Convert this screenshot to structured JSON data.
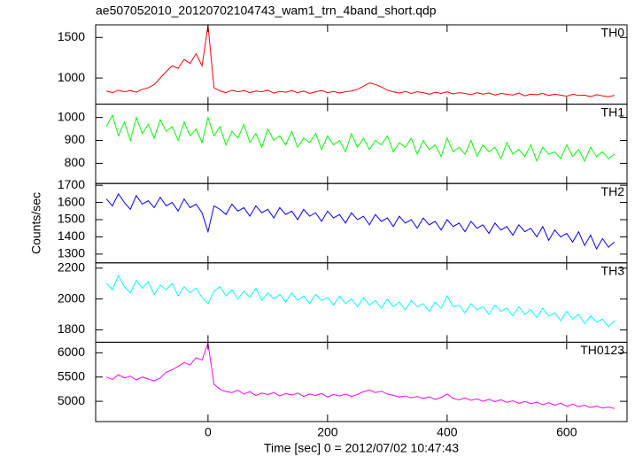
{
  "title": "ae507052010_20120702104743_wam1_trn_4band_short.qdp",
  "x_label": "Time [sec] 0 = 2012/07/02 10:47:43",
  "y_label": "Counts/sec",
  "chart_data": [
    {
      "type": "line",
      "x": [
        -170,
        -160,
        -150,
        -140,
        -130,
        -120,
        -110,
        -100,
        -90,
        -80,
        -70,
        -60,
        -50,
        -40,
        -30,
        -20,
        -10,
        0,
        10,
        20,
        30,
        40,
        50,
        60,
        70,
        80,
        90,
        100,
        110,
        120,
        130,
        140,
        150,
        160,
        170,
        180,
        190,
        200,
        210,
        220,
        230,
        240,
        250,
        260,
        270,
        280,
        290,
        300,
        310,
        320,
        330,
        340,
        350,
        360,
        370,
        380,
        390,
        400,
        410,
        420,
        430,
        440,
        450,
        460,
        470,
        480,
        490,
        500,
        510,
        520,
        530,
        540,
        550,
        560,
        570,
        580,
        590,
        600,
        610,
        620,
        630,
        640,
        650,
        660,
        670,
        680
      ],
      "series": [
        {
          "name": "TH0",
          "color": "#ff0000",
          "values": [
            840,
            820,
            850,
            830,
            845,
            825,
            860,
            880,
            920,
            1000,
            1080,
            1150,
            1120,
            1230,
            1180,
            1300,
            1150,
            1650,
            880,
            840,
            820,
            850,
            830,
            845,
            820,
            840,
            830,
            850,
            815,
            835,
            825,
            845,
            820,
            840,
            810,
            830,
            845,
            820,
            835,
            815,
            830,
            840,
            860,
            900,
            940,
            920,
            890,
            850,
            830,
            815,
            835,
            810,
            830,
            820,
            800,
            825,
            810,
            830,
            805,
            820,
            810,
            795,
            820,
            800,
            815,
            790,
            810,
            800,
            790,
            815,
            780,
            800,
            795,
            810,
            785,
            800,
            790,
            775,
            800,
            785,
            790,
            770,
            795,
            780,
            770,
            785
          ]
        }
      ],
      "xlim": [
        -188,
        701
      ],
      "xticks": [
        0,
        200,
        400,
        600
      ],
      "ylim": [
        678,
        1656
      ],
      "yticks": [
        1000,
        1500
      ]
    },
    {
      "type": "line",
      "x": [
        -170,
        -160,
        -150,
        -140,
        -130,
        -120,
        -110,
        -100,
        -90,
        -80,
        -70,
        -60,
        -50,
        -40,
        -30,
        -20,
        -10,
        0,
        10,
        20,
        30,
        40,
        50,
        60,
        70,
        80,
        90,
        100,
        110,
        120,
        130,
        140,
        150,
        160,
        170,
        180,
        190,
        200,
        210,
        220,
        230,
        240,
        250,
        260,
        270,
        280,
        290,
        300,
        310,
        320,
        330,
        340,
        350,
        360,
        370,
        380,
        390,
        400,
        410,
        420,
        430,
        440,
        450,
        460,
        470,
        480,
        490,
        500,
        510,
        520,
        530,
        540,
        550,
        560,
        570,
        580,
        590,
        600,
        610,
        620,
        630,
        640,
        650,
        660,
        670,
        680
      ],
      "series": [
        {
          "name": "TH1",
          "color": "#00ff00",
          "values": [
            960,
            1010,
            920,
            980,
            900,
            1000,
            930,
            970,
            910,
            990,
            940,
            960,
            900,
            980,
            920,
            950,
            890,
            1000,
            920,
            960,
            880,
            940,
            910,
            970,
            890,
            930,
            870,
            950,
            900,
            920,
            880,
            940,
            870,
            910,
            890,
            930,
            860,
            920,
            880,
            900,
            850,
            930,
            870,
            910,
            860,
            900,
            880,
            920,
            850,
            890,
            870,
            910,
            840,
            900,
            860,
            880,
            830,
            910,
            850,
            870,
            840,
            900,
            830,
            880,
            850,
            870,
            820,
            890,
            840,
            860,
            830,
            880,
            810,
            870,
            840,
            850,
            820,
            880,
            830,
            860,
            810,
            870,
            830,
            850,
            820,
            840
          ]
        }
      ],
      "xlim": [
        -188,
        701
      ],
      "xticks": [
        0,
        200,
        400,
        600
      ],
      "ylim": [
        712,
        1058
      ],
      "yticks": [
        800,
        900,
        1000
      ]
    },
    {
      "type": "line",
      "x": [
        -170,
        -160,
        -150,
        -140,
        -130,
        -120,
        -110,
        -100,
        -90,
        -80,
        -70,
        -60,
        -50,
        -40,
        -30,
        -20,
        -10,
        0,
        10,
        20,
        30,
        40,
        50,
        60,
        70,
        80,
        90,
        100,
        110,
        120,
        130,
        140,
        150,
        160,
        170,
        180,
        190,
        200,
        210,
        220,
        230,
        240,
        250,
        260,
        270,
        280,
        290,
        300,
        310,
        320,
        330,
        340,
        350,
        360,
        370,
        380,
        390,
        400,
        410,
        420,
        430,
        440,
        450,
        460,
        470,
        480,
        490,
        500,
        510,
        520,
        530,
        540,
        550,
        560,
        570,
        580,
        590,
        600,
        610,
        620,
        630,
        640,
        650,
        660,
        670,
        680
      ],
      "series": [
        {
          "name": "TH2",
          "color": "#0000ff",
          "values": [
            1620,
            1580,
            1650,
            1600,
            1560,
            1640,
            1590,
            1610,
            1570,
            1630,
            1580,
            1600,
            1550,
            1620,
            1570,
            1590,
            1540,
            1430,
            1580,
            1560,
            1530,
            1590,
            1550,
            1570,
            1520,
            1580,
            1540,
            1560,
            1510,
            1570,
            1530,
            1550,
            1500,
            1560,
            1520,
            1540,
            1490,
            1550,
            1510,
            1530,
            1480,
            1540,
            1500,
            1520,
            1470,
            1530,
            1490,
            1510,
            1460,
            1520,
            1480,
            1500,
            1450,
            1510,
            1470,
            1490,
            1440,
            1500,
            1460,
            1480,
            1430,
            1490,
            1450,
            1470,
            1420,
            1480,
            1440,
            1460,
            1410,
            1470,
            1430,
            1450,
            1400,
            1460,
            1380,
            1440,
            1400,
            1420,
            1370,
            1430,
            1350,
            1410,
            1330,
            1390,
            1340,
            1370
          ]
        }
      ],
      "xlim": [
        -188,
        701
      ],
      "xticks": [
        0,
        200,
        400,
        600
      ],
      "ylim": [
        1249,
        1710
      ],
      "yticks": [
        1300,
        1400,
        1500,
        1600,
        1700
      ]
    },
    {
      "type": "line",
      "x": [
        -170,
        -160,
        -150,
        -140,
        -130,
        -120,
        -110,
        -100,
        -90,
        -80,
        -70,
        -60,
        -50,
        -40,
        -30,
        -20,
        -10,
        0,
        10,
        20,
        30,
        40,
        50,
        60,
        70,
        80,
        90,
        100,
        110,
        120,
        130,
        140,
        150,
        160,
        170,
        180,
        190,
        200,
        210,
        220,
        230,
        240,
        250,
        260,
        270,
        280,
        290,
        300,
        310,
        320,
        330,
        340,
        350,
        360,
        370,
        380,
        390,
        400,
        410,
        420,
        430,
        440,
        450,
        460,
        470,
        480,
        490,
        500,
        510,
        520,
        530,
        540,
        550,
        560,
        570,
        580,
        590,
        600,
        610,
        620,
        630,
        640,
        650,
        660,
        670,
        680
      ],
      "series": [
        {
          "name": "TH3",
          "color": "#00ffff",
          "values": [
            2100,
            2060,
            2150,
            2080,
            2040,
            2120,
            2070,
            2110,
            2030,
            2090,
            2060,
            2100,
            2020,
            2080,
            2040,
            2070,
            2010,
            1970,
            2050,
            2080,
            2020,
            2060,
            2000,
            2050,
            2010,
            2070,
            1990,
            2040,
            2000,
            2030,
            1980,
            2040,
            1990,
            2020,
            1970,
            2030,
            1990,
            2010,
            1960,
            2020,
            1970,
            2000,
            1950,
            2010,
            1960,
            1990,
            1940,
            2000,
            1950,
            1980,
            1930,
            1990,
            1950,
            1970,
            1920,
            1980,
            1940,
            2020,
            1950,
            1960,
            1910,
            1970,
            1930,
            1950,
            1900,
            1960,
            1920,
            1940,
            1890,
            1950,
            1900,
            1930,
            1880,
            1940,
            1890,
            1910,
            1860,
            1920,
            1870,
            1900,
            1840,
            1890,
            1850,
            1870,
            1820,
            1860
          ]
        }
      ],
      "xlim": [
        -188,
        701
      ],
      "xticks": [
        0,
        200,
        400,
        600
      ],
      "ylim": [
        1720,
        2234
      ],
      "yticks": [
        1800,
        2000,
        2200
      ]
    },
    {
      "type": "line",
      "x": [
        -170,
        -160,
        -150,
        -140,
        -130,
        -120,
        -110,
        -100,
        -90,
        -80,
        -70,
        -60,
        -50,
        -40,
        -30,
        -20,
        -10,
        0,
        10,
        20,
        30,
        40,
        50,
        60,
        70,
        80,
        90,
        100,
        110,
        120,
        130,
        140,
        150,
        160,
        170,
        180,
        190,
        200,
        210,
        220,
        230,
        240,
        250,
        260,
        270,
        280,
        290,
        300,
        310,
        320,
        330,
        340,
        350,
        360,
        370,
        380,
        390,
        400,
        410,
        420,
        430,
        440,
        450,
        460,
        470,
        480,
        490,
        500,
        510,
        520,
        530,
        540,
        550,
        560,
        570,
        580,
        590,
        600,
        610,
        620,
        630,
        640,
        650,
        660,
        670,
        680
      ],
      "series": [
        {
          "name": "TH0123",
          "color": "#ff00ff",
          "values": [
            5500,
            5450,
            5550,
            5480,
            5520,
            5440,
            5500,
            5460,
            5420,
            5480,
            5600,
            5650,
            5720,
            5800,
            5750,
            5900,
            5850,
            6200,
            5350,
            5250,
            5200,
            5180,
            5230,
            5150,
            5200,
            5120,
            5170,
            5140,
            5180,
            5110,
            5160,
            5130,
            5170,
            5100,
            5150,
            5120,
            5160,
            5090,
            5140,
            5110,
            5150,
            5100,
            5140,
            5200,
            5230,
            5180,
            5210,
            5150,
            5120,
            5090,
            5110,
            5070,
            5100,
            5060,
            5090,
            5040,
            5080,
            5150,
            5060,
            5030,
            5070,
            5020,
            5050,
            5000,
            5040,
            4990,
            5030,
            4980,
            5010,
            4960,
            5000,
            4950,
            4980,
            4930,
            4970,
            4920,
            4960,
            4900,
            4940,
            4890,
            4920,
            4870,
            4900,
            4860,
            4880,
            4850
          ]
        }
      ],
      "xlim": [
        -188,
        701
      ],
      "xticks": [
        0,
        200,
        400,
        600
      ],
      "ylim": [
        4582,
        6218
      ],
      "yticks": [
        5000,
        5500,
        6000
      ]
    }
  ]
}
